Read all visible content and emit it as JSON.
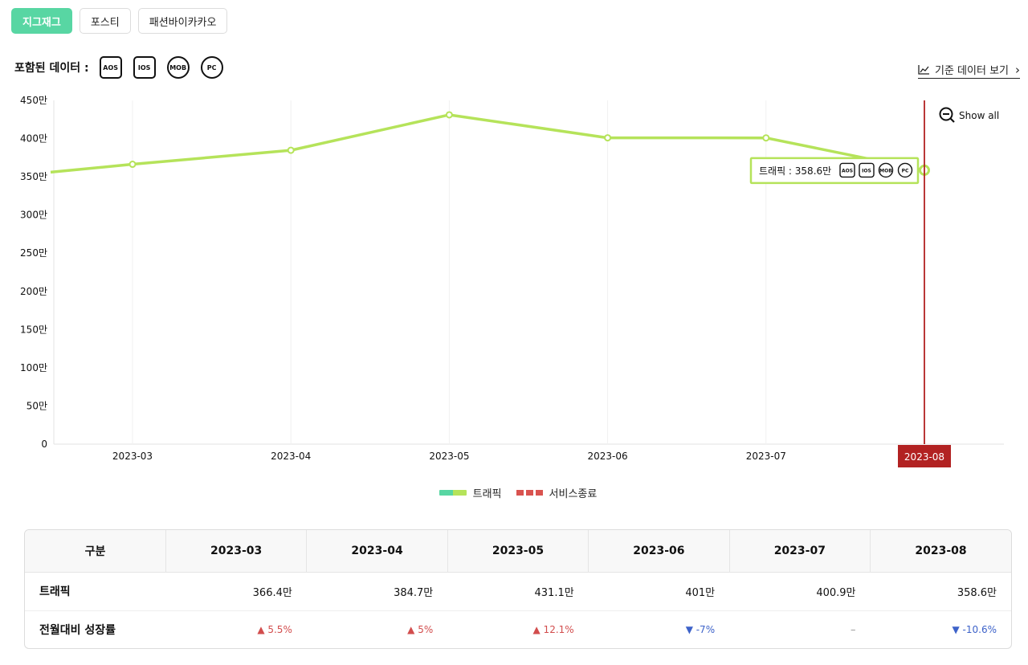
{
  "tabs": [
    {
      "label": "지그재그",
      "active": true
    },
    {
      "label": "포스티",
      "active": false
    },
    {
      "label": "패션바이카카오",
      "active": false
    }
  ],
  "included": {
    "label": "포함된 데이터 :",
    "icons": [
      {
        "text": "AOS",
        "shape": "square"
      },
      {
        "text": "IOS",
        "shape": "square"
      },
      {
        "text": "MOB",
        "shape": "circle"
      },
      {
        "text": "PC",
        "shape": "circle"
      }
    ]
  },
  "base_link": {
    "icon": "line-chart-icon",
    "label": "기준 데이터 보기"
  },
  "show_all": "Show all",
  "chart_data": {
    "type": "line",
    "y_tick_labels": [
      "0",
      "50만",
      "100만",
      "150만",
      "200만",
      "250만",
      "300만",
      "350만",
      "400만",
      "450만"
    ],
    "x": [
      "2023-03",
      "2023-04",
      "2023-05",
      "2023-06",
      "2023-07",
      "2023-08"
    ],
    "ylim": [
      0,
      450
    ],
    "grid": "vertical",
    "series": [
      {
        "name": "트래픽",
        "values": [
          366.4,
          384.7,
          431.1,
          401,
          400.9,
          358.6
        ],
        "color": "#b5e35a",
        "start_value": 356
      }
    ],
    "highlight": {
      "x": "2023-08",
      "label": "서비스종료",
      "color": "#b22222"
    },
    "tooltip": {
      "text": "트래픽 : 358.6만",
      "icons": [
        "AOS",
        "IOS",
        "MOB",
        "PC"
      ]
    },
    "legend": [
      {
        "label": "트래픽",
        "colors": [
          "#58d6a3",
          "#b5e35a"
        ]
      },
      {
        "label": "서비스종료",
        "color": "#d9534f"
      }
    ],
    "legend_position": "bottom"
  },
  "table": {
    "header_label": "구분",
    "columns": [
      "2023-03",
      "2023-04",
      "2023-05",
      "2023-06",
      "2023-07",
      "2023-08"
    ],
    "rows": [
      {
        "label": "트래픽",
        "cells": [
          {
            "text": "366.4만"
          },
          {
            "text": "384.7만"
          },
          {
            "text": "431.1만"
          },
          {
            "text": "401만"
          },
          {
            "text": "400.9만"
          },
          {
            "text": "358.6만"
          }
        ]
      },
      {
        "label": "전월대비 성장률",
        "cells": [
          {
            "text": "▲ 5.5%",
            "dir": "up"
          },
          {
            "text": "▲ 5%",
            "dir": "up"
          },
          {
            "text": "▲ 12.1%",
            "dir": "up"
          },
          {
            "text": "▼ -7%",
            "dir": "down"
          },
          {
            "text": "–",
            "dir": "flat"
          },
          {
            "text": "▼ -10.6%",
            "dir": "down"
          }
        ]
      }
    ]
  }
}
